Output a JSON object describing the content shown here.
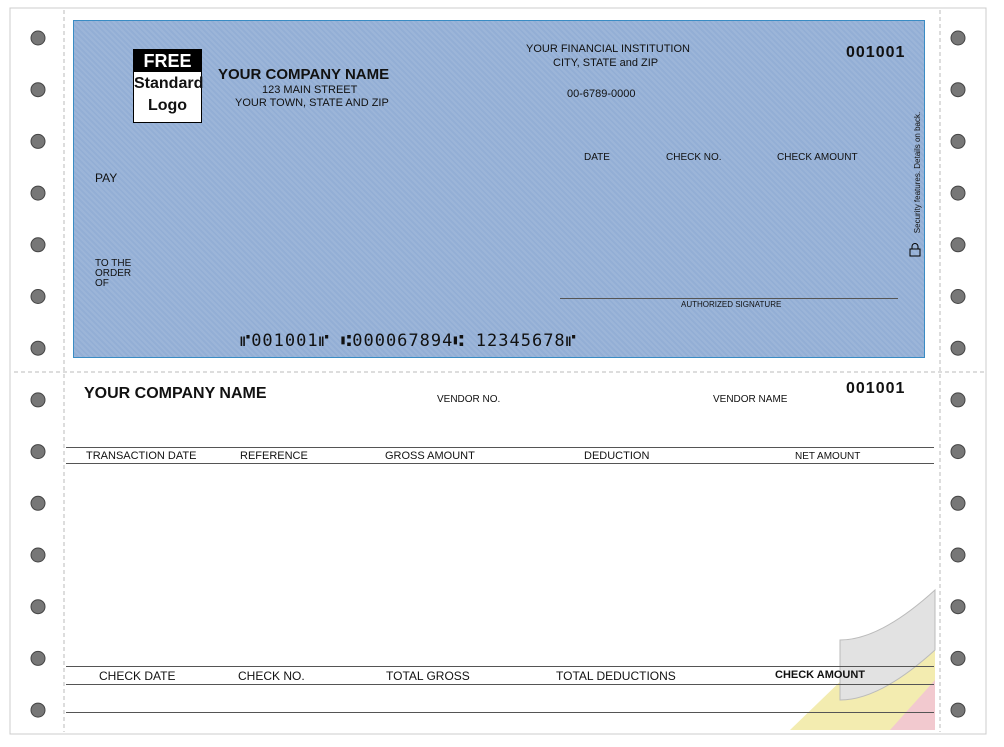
{
  "check": {
    "logo": {
      "line1": "FREE",
      "line2": "Standard",
      "line3": "Logo"
    },
    "company": {
      "name": "YOUR COMPANY NAME",
      "street": "123 MAIN STREET",
      "city": "YOUR TOWN, STATE AND ZIP"
    },
    "bank": {
      "name": "YOUR FINANCIAL INSTITUTION",
      "city": "CITY, STATE and ZIP",
      "routing": "00-6789-0000"
    },
    "number": "001001",
    "fields": {
      "date": "DATE",
      "check_no": "CHECK NO.",
      "check_amount": "CHECK AMOUNT"
    },
    "pay": "PAY",
    "to_the_order_of": [
      "TO THE",
      "ORDER",
      "OF"
    ],
    "signature": "AUTHORIZED SIGNATURE",
    "micr": "⑈001001⑈ ⑆000067894⑆ 12345678⑈",
    "security_note": "Security features. Details on back."
  },
  "stub": {
    "company": "YOUR COMPANY NAME",
    "vendor_no": "VENDOR NO.",
    "vendor_name": "VENDOR NAME",
    "number": "001001",
    "columns": [
      "TRANSACTION DATE",
      "REFERENCE",
      "GROSS AMOUNT",
      "DEDUCTION",
      "NET AMOUNT"
    ],
    "totals": [
      "CHECK DATE",
      "CHECK NO.",
      "TOTAL GROSS",
      "TOTAL DEDUCTIONS",
      "CHECK AMOUNT"
    ]
  }
}
